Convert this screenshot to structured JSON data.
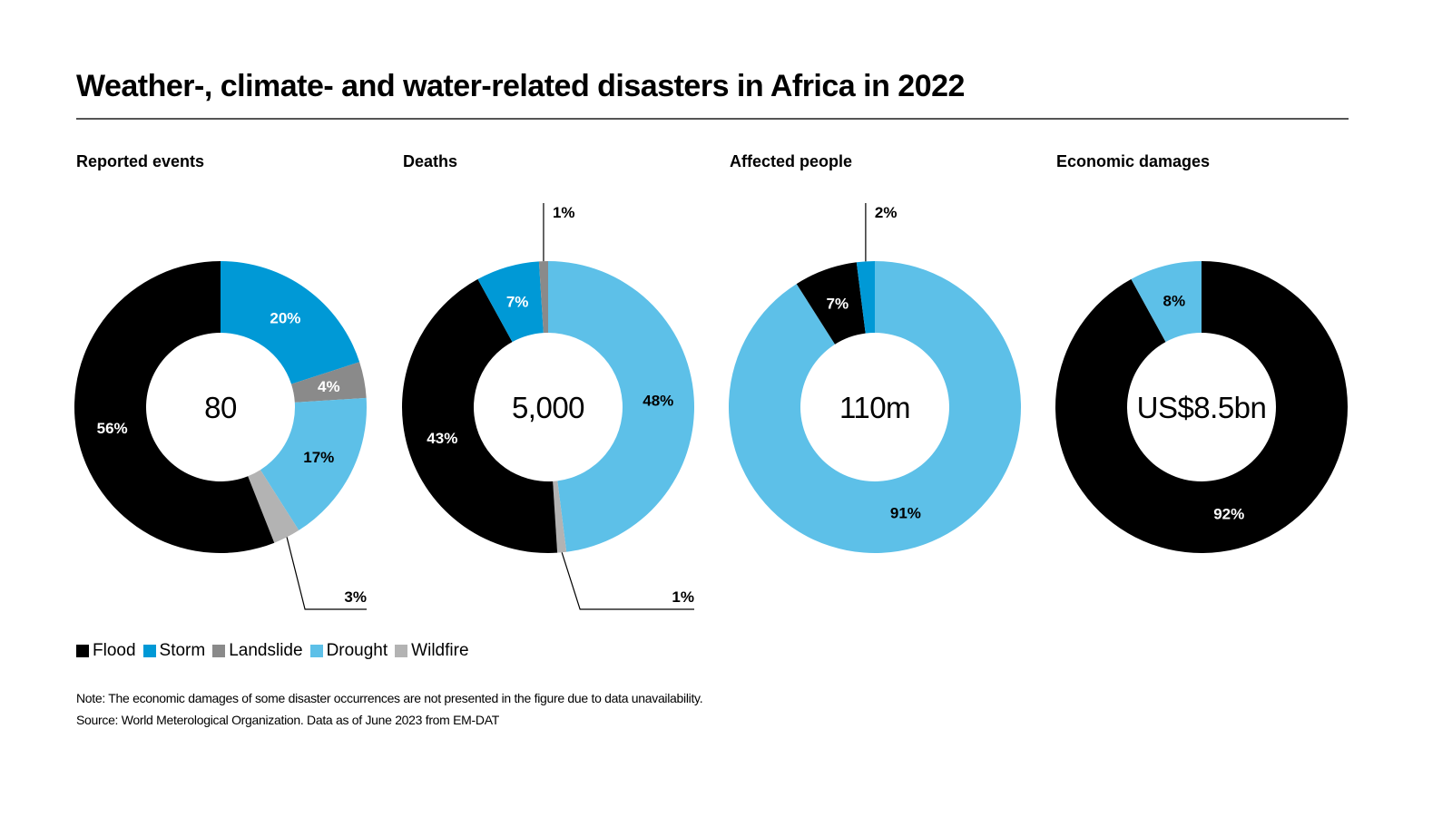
{
  "title": "Weather-, climate- and water-related disasters in Africa in 2022",
  "colors": {
    "Flood": "#000000",
    "Storm": "#0099d6",
    "Landslide": "#8a8a8a",
    "Drought": "#5dc0e8",
    "Wildfire": "#b3b3b3"
  },
  "legend": [
    {
      "label": "Flood",
      "color": "#000000"
    },
    {
      "label": "Storm",
      "color": "#0099d6"
    },
    {
      "label": "Landslide",
      "color": "#8a8a8a"
    },
    {
      "label": "Drought",
      "color": "#5dc0e8"
    },
    {
      "label": "Wildfire",
      "color": "#b3b3b3"
    }
  ],
  "note": "Note: The economic damages of some disaster occurrences are not presented in the figure due to data unavailability.",
  "source": "Source: World Meterological Organization. Data as of June 2023 from EM-DAT",
  "chart_data": [
    {
      "type": "pie",
      "variant": "donut",
      "title": "Reported events",
      "center_label": "80",
      "slices": [
        {
          "category": "Storm",
          "value": 20,
          "label": "20%"
        },
        {
          "category": "Landslide",
          "value": 4,
          "label": "4%"
        },
        {
          "category": "Drought",
          "value": 17,
          "label": "17%"
        },
        {
          "category": "Wildfire",
          "value": 3,
          "label": "3%",
          "callout": true
        },
        {
          "category": "Flood",
          "value": 56,
          "label": "56%"
        }
      ]
    },
    {
      "type": "pie",
      "variant": "donut",
      "title": "Deaths",
      "center_label": "5,000",
      "slices": [
        {
          "category": "Drought",
          "value": 48,
          "label": "48%"
        },
        {
          "category": "Wildfire",
          "value": 1,
          "label": "1%",
          "callout": true
        },
        {
          "category": "Flood",
          "value": 43,
          "label": "43%"
        },
        {
          "category": "Storm",
          "value": 7,
          "label": "7%"
        },
        {
          "category": "Landslide",
          "value": 1,
          "label": "1%",
          "callout": true
        }
      ]
    },
    {
      "type": "pie",
      "variant": "donut",
      "title": "Affected people",
      "center_label": "110m",
      "slices": [
        {
          "category": "Drought",
          "value": 91,
          "label": "91%"
        },
        {
          "category": "Flood",
          "value": 7,
          "label": "7%"
        },
        {
          "category": "Storm",
          "value": 2,
          "label": "2%",
          "callout": true
        }
      ]
    },
    {
      "type": "pie",
      "variant": "donut",
      "title": "Economic damages",
      "center_label": "US$8.5bn",
      "slices": [
        {
          "category": "Flood",
          "value": 92,
          "label": "92%"
        },
        {
          "category": "Drought",
          "value": 8,
          "label": "8%"
        }
      ]
    }
  ]
}
